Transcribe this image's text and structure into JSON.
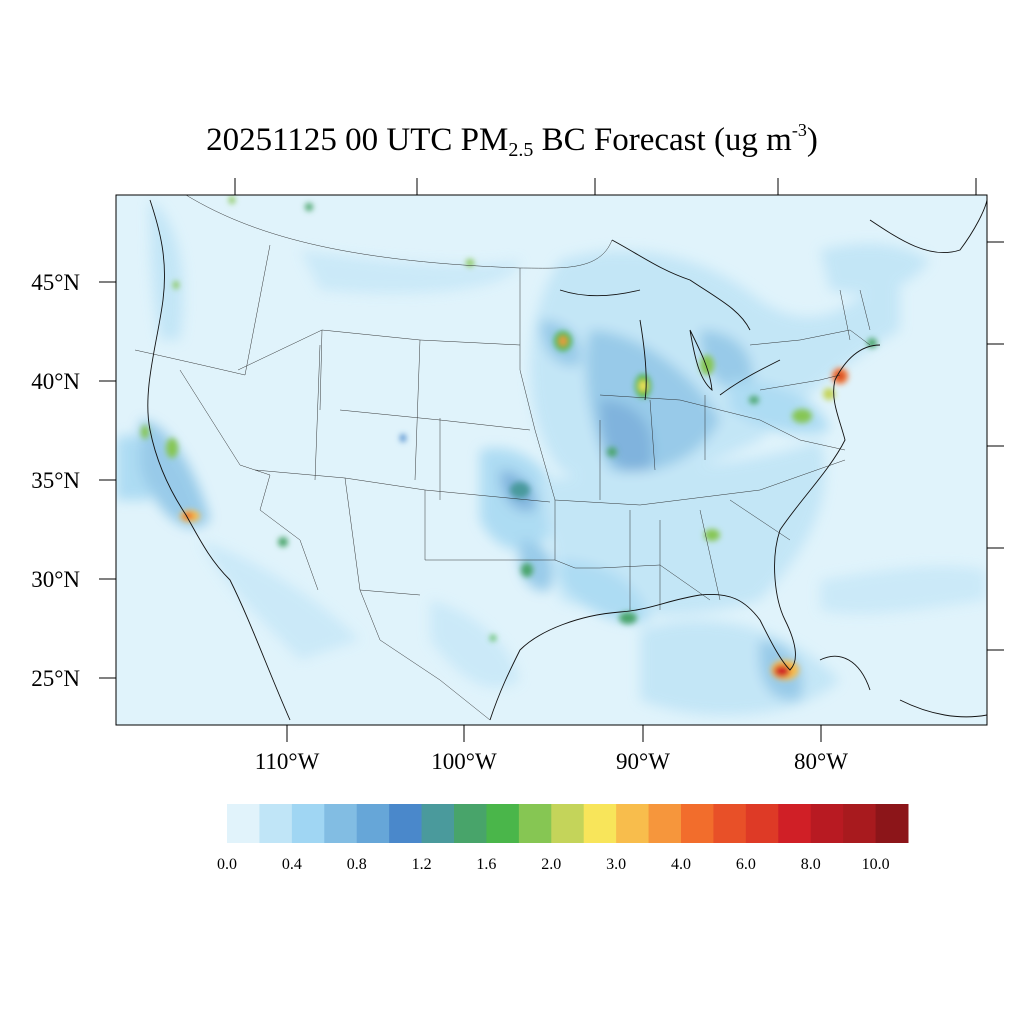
{
  "title": {
    "prefix": "20251125 00 UTC PM",
    "subscript": "2.5",
    "middle": " BC Forecast (ug m",
    "superscript": "-3",
    "suffix": ")"
  },
  "map": {
    "region": "Contiguous United States",
    "lat_labels": [
      "45°N",
      "40°N",
      "35°N",
      "30°N",
      "25°N"
    ],
    "lon_labels": [
      "110°W",
      "100°W",
      "90°W",
      "80°W"
    ],
    "background_color": "#e0f3fb"
  },
  "colorbar": {
    "colors": [
      "#e1f3fb",
      "#c0e5f7",
      "#a0d6f3",
      "#82bde3",
      "#66a6d8",
      "#4a88cb",
      "#4a9a9c",
      "#48a46a",
      "#4ab64a",
      "#86c653",
      "#c4d45a",
      "#f8e55a",
      "#f8bd4c",
      "#f6963c",
      "#f26d2c",
      "#e85028",
      "#de3a26",
      "#d01f26",
      "#b81a22",
      "#a81a1e",
      "#8c1519"
    ],
    "tick_labels": [
      "0.0",
      "0.4",
      "0.8",
      "1.2",
      "1.6",
      "2.0",
      "3.0",
      "4.0",
      "6.0",
      "8.0",
      "10.0"
    ]
  }
}
